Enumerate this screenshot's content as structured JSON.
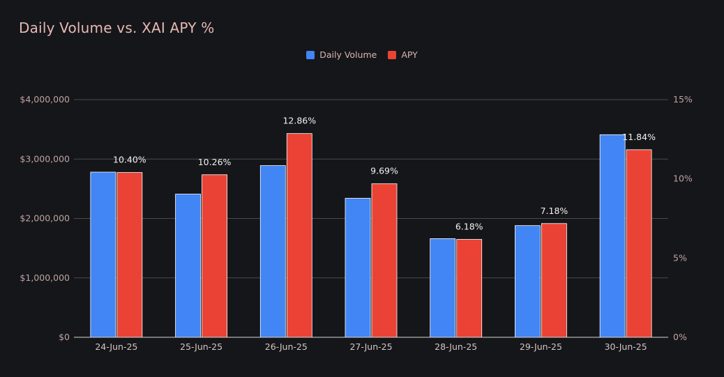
{
  "chart_data": {
    "type": "bar",
    "title": "Daily Volume vs. XAI APY %",
    "categories": [
      "24-Jun-25",
      "25-Jun-25",
      "26-Jun-25",
      "27-Jun-25",
      "28-Jun-25",
      "29-Jun-25",
      "30-Jun-25"
    ],
    "series": [
      {
        "name": "Daily Volume",
        "axis": "left",
        "color": "#4285f4",
        "values": [
          2780000,
          2410000,
          2890000,
          2340000,
          1660000,
          1880000,
          3410000
        ]
      },
      {
        "name": "APY",
        "axis": "right",
        "color": "#ea4335",
        "values": [
          10.4,
          10.26,
          12.86,
          9.69,
          6.18,
          7.18,
          11.84
        ],
        "data_labels": [
          "10.40%",
          "10.26%",
          "12.86%",
          "9.69%",
          "6.18%",
          "7.18%",
          "11.84%"
        ]
      }
    ],
    "y_left": {
      "lim": [
        0,
        4000000
      ],
      "ticks": [
        0,
        1000000,
        2000000,
        3000000,
        4000000
      ],
      "tick_labels": [
        "$0",
        "$1,000,000",
        "$2,000,000",
        "$3,000,000",
        "$4,000,000"
      ]
    },
    "y_right": {
      "lim": [
        0,
        15
      ],
      "ticks": [
        0,
        5,
        10,
        15
      ],
      "tick_labels": [
        "0%",
        "5%",
        "10%",
        "15%"
      ]
    },
    "grid": true,
    "legend": "top-center",
    "colors": {
      "background": "#151619",
      "gridline": "#4a4a4d",
      "baseline": "#d8d8d8"
    }
  }
}
